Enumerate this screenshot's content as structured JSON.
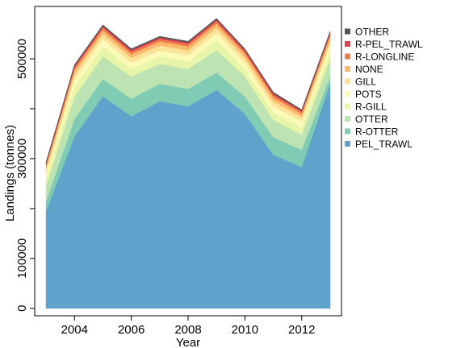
{
  "chart_data": {
    "type": "area",
    "stacked": true,
    "xlabel": "Year",
    "ylabel": "Landings (tonnes)",
    "xlim": [
      2002.6,
      2013.4
    ],
    "ylim": [
      -15000,
      605000
    ],
    "x": [
      2003,
      2004,
      2005,
      2006,
      2007,
      2008,
      2009,
      2010,
      2011,
      2012,
      2013
    ],
    "x_ticks": [
      2004,
      2006,
      2008,
      2010,
      2012
    ],
    "x_tick_labels": [
      "2004",
      "2006",
      "2008",
      "2010",
      "2012"
    ],
    "y_ticks": [
      0,
      100000,
      200000,
      300000,
      400000,
      500000
    ],
    "y_tick_labels": [
      "0",
      "100000",
      "",
      "300000",
      "",
      "500000"
    ],
    "legend_position": "right",
    "series": [
      {
        "name": "PEL_TRAWL",
        "color": "#5fa2cc",
        "values": [
          195000,
          345000,
          425000,
          385000,
          415000,
          405000,
          438000,
          390000,
          308000,
          283000,
          450000
        ]
      },
      {
        "name": "R-OTTER",
        "color": "#7fcbb4",
        "values": [
          20000,
          35000,
          35000,
          35000,
          35000,
          35000,
          35000,
          35000,
          35000,
          35000,
          15000
        ]
      },
      {
        "name": "OTTER",
        "color": "#bde3b2",
        "values": [
          30000,
          45000,
          45000,
          45000,
          40000,
          40000,
          45000,
          40000,
          35000,
          30000,
          35000
        ]
      },
      {
        "name": "R-GILL",
        "color": "#e8f5a8",
        "values": [
          15000,
          20000,
          20000,
          15000,
          15000,
          15000,
          20000,
          15000,
          15000,
          15000,
          15000
        ]
      },
      {
        "name": "POTS",
        "color": "#fbfab8",
        "values": [
          10000,
          15000,
          15000,
          12000,
          12000,
          12000,
          15000,
          12000,
          12000,
          12000,
          12000
        ]
      },
      {
        "name": "GILL",
        "color": "#fde39a",
        "values": [
          8000,
          10000,
          10000,
          10000,
          10000,
          10000,
          10000,
          10000,
          10000,
          8000,
          10000
        ]
      },
      {
        "name": "NONE",
        "color": "#fcb96c",
        "values": [
          7000,
          8000,
          8000,
          8000,
          8000,
          8000,
          8000,
          8000,
          8000,
          7000,
          8000
        ]
      },
      {
        "name": "R-LONGLINE",
        "color": "#f07b4f",
        "values": [
          4000,
          5000,
          5000,
          5000,
          5000,
          5000,
          5000,
          5000,
          5000,
          4000,
          5000
        ]
      },
      {
        "name": "R-PEL_TRAWL",
        "color": "#d94050",
        "values": [
          2000,
          3000,
          3000,
          3000,
          3000,
          3000,
          3000,
          3000,
          3000,
          2000,
          3000
        ]
      },
      {
        "name": "OTHER",
        "color": "#555555",
        "values": [
          2000,
          2000,
          2000,
          2000,
          2000,
          2000,
          2000,
          2000,
          2000,
          2000,
          2000
        ]
      }
    ]
  }
}
